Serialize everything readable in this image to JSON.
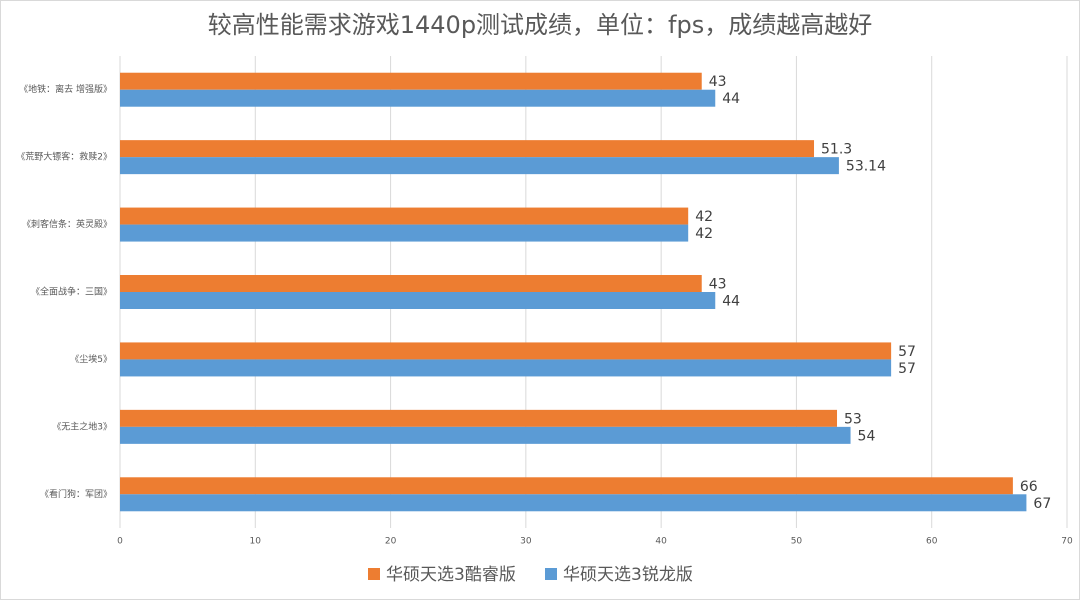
{
  "chart_data": {
    "type": "hbar",
    "title": "较高性能需求游戏1440p测试成绩，单位：fps，成绩越高越好",
    "categories": [
      "《地铁：离去 增强版》",
      "《荒野大镖客：救赎2》",
      "《刺客信条：英灵殿》",
      "《全面战争：三国》",
      "《尘埃5》",
      "《无主之地3》",
      "《看门狗：军团》"
    ],
    "series": [
      {
        "name": "华硕天选3酷睿版",
        "color": "#ed7d31",
        "values": [
          43,
          51.3,
          42,
          43,
          57,
          53,
          66
        ]
      },
      {
        "name": "华硕天选3锐龙版",
        "color": "#5b9bd5",
        "values": [
          44,
          53.14,
          42,
          44,
          57,
          54,
          67
        ]
      }
    ],
    "xlim": [
      0,
      70
    ],
    "xticks": [
      0,
      10,
      20,
      30,
      40,
      50,
      60,
      70
    ],
    "grid": true,
    "legend": "bottom"
  }
}
